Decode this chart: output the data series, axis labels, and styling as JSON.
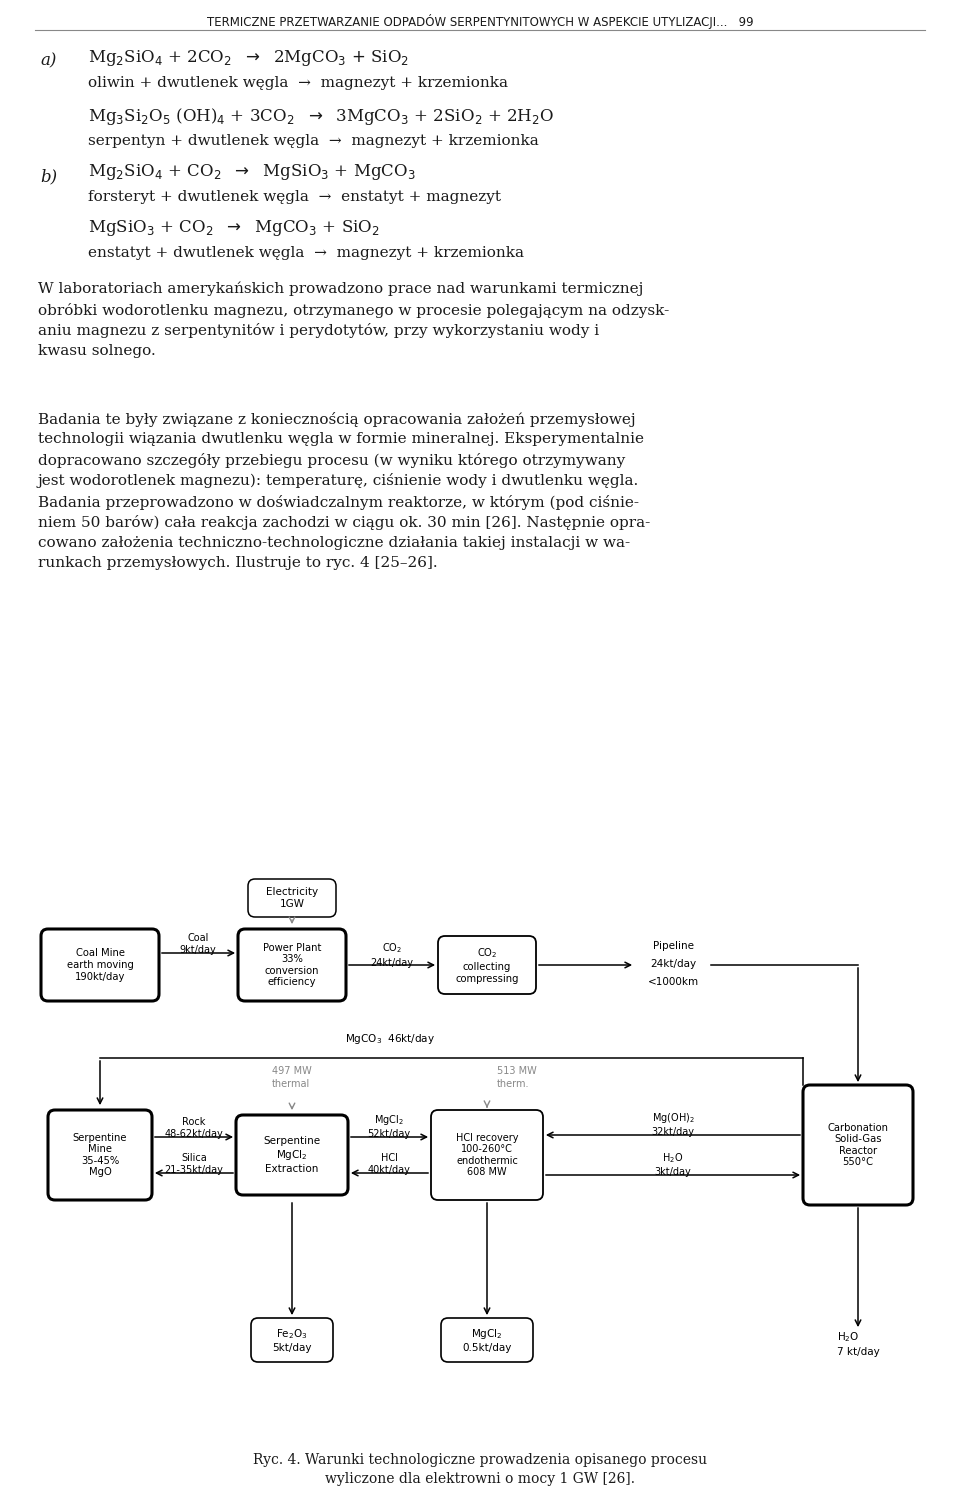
{
  "bg": "#ffffff",
  "title": "TERMICZNE PRZETWARZANIE ODPADÓW SERPENTYNITOWYCH W ASPEKCIE UTYLIZACJI...   99",
  "caption": "Ryc. 4. Warunki technologiczne prowadzenia opisanego procesu\nwyliczone dla elektrowni o mocy 1 GW [26].",
  "p1": "W laboratoriach amerykańskich prowadzono prace nad warunkami termicznej\nобróbki wodorotlenku magnezu, otrzymanego w procesie polegającym na odzysk-\naniu magnezu z serpentynitów i perydotytów, przy wykorzystaniu wody i\nkwasu solnego.",
  "p2": "Badania te były związane z koniecznością opracowania założeń przemysłowej\ntechnologii wiązania dwutlenku węgla w formie mineralnej. Eksperymentalnie\ndopracowano szczegóły przebiegu procesu (w wyniku którego otrzymywany\njest wodorotlenek magnezu): temperaturę, ciśnienie wody i dwutlenku węgla.\nBadania przeprowadzono w doświadczalnym reaktorze, w którym (pod ciśnie-\niem 50 barów) cała reakcja zachodzi w ciągu ok. 30 min [26]. Następnie opra-\ncowano założenia techniczno-technologiczne działania takiej instalacji w wa-\nrunkach przemysłowych. Ilustruje to ryc. 4 [25–26]."
}
